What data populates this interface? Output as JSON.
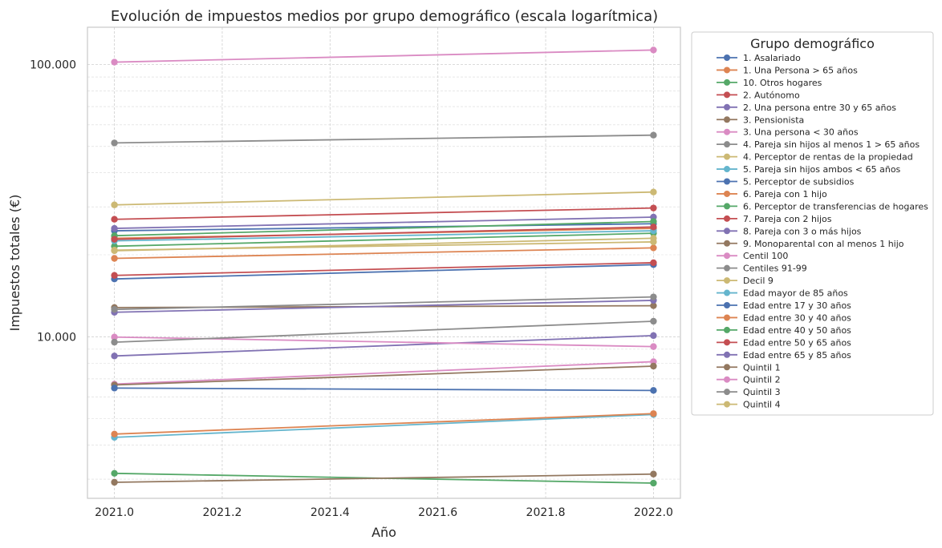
{
  "chart_data": {
    "type": "line",
    "title": "Evolución de impuestos medios por grupo demográfico (escala logarítmica)",
    "xlabel": "Año",
    "ylabel": "Impuestos totales (€)",
    "x": [
      2021,
      2022
    ],
    "xlim": [
      2020.95,
      2022.05
    ],
    "ylim": [
      2550,
      137000
    ],
    "yscale": "log",
    "xticks": [
      2021.0,
      2021.2,
      2021.4,
      2021.6,
      2021.8,
      2022.0
    ],
    "xtick_labels": [
      "2021.0",
      "2021.2",
      "2021.4",
      "2021.6",
      "2021.8",
      "2022.0"
    ],
    "yticks": [
      10000,
      100000
    ],
    "ytick_labels": [
      "10.000",
      "100.000"
    ],
    "grid": true,
    "legend": {
      "title": "Grupo demográfico",
      "placement": "outside-right"
    },
    "series": [
      {
        "name": "1. Asalariado",
        "color": "#4c72b0",
        "values": [
          24500,
          26000
        ]
      },
      {
        "name": "1. Una Persona > 65 años",
        "color": "#dd8452",
        "values": [
          23000,
          25000
        ]
      },
      {
        "name": "10. Otros hogares",
        "color": "#55a868",
        "values": [
          21500,
          24000
        ]
      },
      {
        "name": "2. Autónomo",
        "color": "#c44e52",
        "values": [
          27000,
          29700
        ]
      },
      {
        "name": "2. Una persona entre 30 y 65 años",
        "color": "#8172b3",
        "values": [
          25000,
          27500
        ]
      },
      {
        "name": "3. Pensionista",
        "color": "#937860",
        "values": [
          12800,
          13000
        ]
      },
      {
        "name": "3. Una persona < 30 años",
        "color": "#da8bc3",
        "values": [
          6700,
          8100
        ]
      },
      {
        "name": "4. Pareja sin hijos al menos 1 > 65 años",
        "color": "#8c8c8c",
        "values": [
          51500,
          55000
        ]
      },
      {
        "name": "4. Perceptor de rentas de la propiedad",
        "color": "#ccb974",
        "values": [
          20700,
          23000
        ]
      },
      {
        "name": "5. Pareja sin hijos ambos < 65 años",
        "color": "#64b5cd",
        "values": [
          22500,
          24500
        ]
      },
      {
        "name": "5. Perceptor de subsidios",
        "color": "#4c72b0",
        "values": [
          16300,
          18400
        ]
      },
      {
        "name": "6. Pareja con 1 hijo",
        "color": "#dd8452",
        "values": [
          19400,
          21200
        ]
      },
      {
        "name": "6. Perceptor de transferencias de hogares",
        "color": "#55a868",
        "values": [
          23500,
          26500
        ]
      },
      {
        "name": "7. Pareja con 2 hijos",
        "color": "#c44e52",
        "values": [
          22800,
          25300
        ]
      },
      {
        "name": "8. Pareja con 3 o más hijos",
        "color": "#8172b3",
        "values": [
          12300,
          13600
        ]
      },
      {
        "name": "9. Monoparental con al menos 1 hijo",
        "color": "#937860",
        "values": [
          6650,
          7800
        ]
      },
      {
        "name": "Centil 100",
        "color": "#da8bc3",
        "values": [
          102000,
          113000
        ]
      },
      {
        "name": "Centiles 91-99",
        "color": "#8c8c8c",
        "values": [
          12600,
          14000
        ]
      },
      {
        "name": "Decil 9",
        "color": "#ccb974",
        "values": [
          30500,
          34000
        ]
      },
      {
        "name": "Edad  mayor de 85 años",
        "color": "#64b5cd",
        "values": [
          4270,
          5180
        ]
      },
      {
        "name": "Edad entre 17 y 30 años",
        "color": "#4c72b0",
        "values": [
          6480,
          6350
        ]
      },
      {
        "name": "Edad entre 30 y 40 años",
        "color": "#dd8452",
        "values": [
          4390,
          5220
        ]
      },
      {
        "name": "Edad entre 40 y 50 años",
        "color": "#55a868",
        "values": [
          3150,
          2900
        ]
      },
      {
        "name": "Edad entre 50 y 65 años",
        "color": "#c44e52",
        "values": [
          16800,
          18700
        ]
      },
      {
        "name": "Edad entre 65 y 85 años",
        "color": "#8172b3",
        "values": [
          8500,
          10100
        ]
      },
      {
        "name": "Quintil 1",
        "color": "#937860",
        "values": [
          2920,
          3130
        ]
      },
      {
        "name": "Quintil 2",
        "color": "#da8bc3",
        "values": [
          9970,
          9200
        ]
      },
      {
        "name": "Quintil 3",
        "color": "#8c8c8c",
        "values": [
          9550,
          11400
        ]
      },
      {
        "name": "Quintil 4",
        "color": "#ccb974",
        "values": [
          20800,
          22300
        ]
      }
    ]
  }
}
